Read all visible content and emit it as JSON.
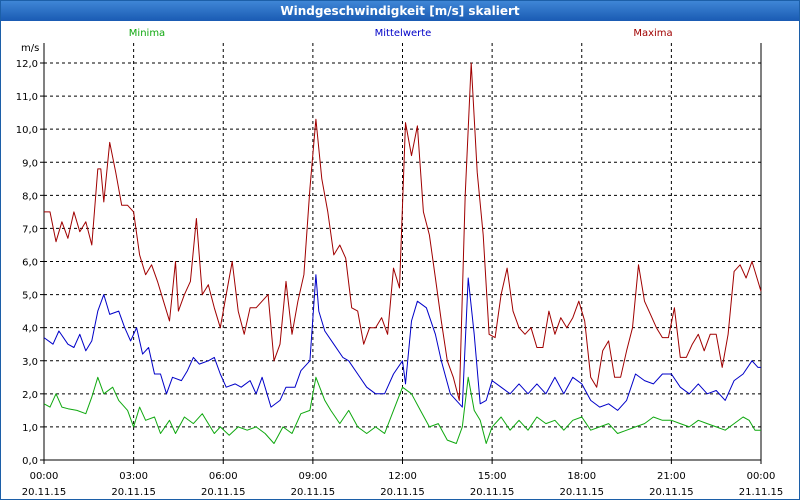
{
  "window": {
    "title": "Windgeschwindigkeit [m/s] skaliert"
  },
  "colors": {
    "minima": "#0fa80f",
    "mittel": "#0000c8",
    "maxima": "#a00000",
    "grid": "#000000"
  },
  "chart_data": {
    "type": "line",
    "title": "Windgeschwindigkeit [m/s] skaliert",
    "ylabel": "m/s",
    "ylim": [
      0,
      12
    ],
    "yticks": [
      "0,0",
      "1,0",
      "2,0",
      "3,0",
      "4,0",
      "5,0",
      "6,0",
      "7,0",
      "8,0",
      "9,0",
      "10,0",
      "11,0",
      "12,0"
    ],
    "xlim_hours": [
      0,
      24
    ],
    "xticks": [
      {
        "time": "00:00",
        "date": "20.11.15"
      },
      {
        "time": "03:00",
        "date": "20.11.15"
      },
      {
        "time": "06:00",
        "date": "20.11.15"
      },
      {
        "time": "09:00",
        "date": "20.11.15"
      },
      {
        "time": "12:00",
        "date": "20.11.15"
      },
      {
        "time": "15:00",
        "date": "20.11.15"
      },
      {
        "time": "18:00",
        "date": "20.11.15"
      },
      {
        "time": "21:00",
        "date": "20.11.15"
      },
      {
        "time": "00:00",
        "date": "21.11.15"
      }
    ],
    "series": [
      {
        "name": "Minima",
        "color": "#0fa80f",
        "points": [
          [
            0,
            1.7
          ],
          [
            0.2,
            1.6
          ],
          [
            0.4,
            2.0
          ],
          [
            0.6,
            1.6
          ],
          [
            0.8,
            1.55
          ],
          [
            1.1,
            1.5
          ],
          [
            1.4,
            1.4
          ],
          [
            1.6,
            1.9
          ],
          [
            1.8,
            2.5
          ],
          [
            2.0,
            2.0
          ],
          [
            2.3,
            2.2
          ],
          [
            2.5,
            1.8
          ],
          [
            2.8,
            1.5
          ],
          [
            3.0,
            1.0
          ],
          [
            3.2,
            1.6
          ],
          [
            3.4,
            1.2
          ],
          [
            3.7,
            1.3
          ],
          [
            3.9,
            0.8
          ],
          [
            4.2,
            1.2
          ],
          [
            4.4,
            0.8
          ],
          [
            4.7,
            1.3
          ],
          [
            5.0,
            1.1
          ],
          [
            5.3,
            1.4
          ],
          [
            5.5,
            1.1
          ],
          [
            5.7,
            0.8
          ],
          [
            5.9,
            1.0
          ],
          [
            6.2,
            0.75
          ],
          [
            6.5,
            1.0
          ],
          [
            6.8,
            0.9
          ],
          [
            7.1,
            1.0
          ],
          [
            7.4,
            0.8
          ],
          [
            7.7,
            0.5
          ],
          [
            8.0,
            1.0
          ],
          [
            8.3,
            0.8
          ],
          [
            8.6,
            1.4
          ],
          [
            8.9,
            1.5
          ],
          [
            9.1,
            2.5
          ],
          [
            9.4,
            1.8
          ],
          [
            9.6,
            1.5
          ],
          [
            9.9,
            1.1
          ],
          [
            10.2,
            1.5
          ],
          [
            10.5,
            1.0
          ],
          [
            10.8,
            0.8
          ],
          [
            11.1,
            1.0
          ],
          [
            11.4,
            0.8
          ],
          [
            11.7,
            1.5
          ],
          [
            12.0,
            2.2
          ],
          [
            12.3,
            2.0
          ],
          [
            12.6,
            1.5
          ],
          [
            12.9,
            1.0
          ],
          [
            13.2,
            1.1
          ],
          [
            13.5,
            0.6
          ],
          [
            13.8,
            0.5
          ],
          [
            14.0,
            1.0
          ],
          [
            14.2,
            2.5
          ],
          [
            14.4,
            1.5
          ],
          [
            14.6,
            1.2
          ],
          [
            14.8,
            0.5
          ],
          [
            15.0,
            1.0
          ],
          [
            15.3,
            1.3
          ],
          [
            15.6,
            0.9
          ],
          [
            15.9,
            1.2
          ],
          [
            16.2,
            0.9
          ],
          [
            16.5,
            1.3
          ],
          [
            16.8,
            1.1
          ],
          [
            17.1,
            1.2
          ],
          [
            17.4,
            0.9
          ],
          [
            17.7,
            1.2
          ],
          [
            18.0,
            1.3
          ],
          [
            18.3,
            0.9
          ],
          [
            18.6,
            1.0
          ],
          [
            18.9,
            1.1
          ],
          [
            19.2,
            0.8
          ],
          [
            19.5,
            0.9
          ],
          [
            19.8,
            1.0
          ],
          [
            20.1,
            1.1
          ],
          [
            20.4,
            1.3
          ],
          [
            20.7,
            1.2
          ],
          [
            21.0,
            1.2
          ],
          [
            21.3,
            1.1
          ],
          [
            21.6,
            1.0
          ],
          [
            21.9,
            1.2
          ],
          [
            22.2,
            1.1
          ],
          [
            22.5,
            1.0
          ],
          [
            22.8,
            0.9
          ],
          [
            23.1,
            1.1
          ],
          [
            23.4,
            1.3
          ],
          [
            23.6,
            1.2
          ],
          [
            23.8,
            0.9
          ],
          [
            24.0,
            0.9
          ]
        ]
      },
      {
        "name": "Mittelwerte",
        "color": "#0000c8",
        "points": [
          [
            0,
            3.7
          ],
          [
            0.3,
            3.5
          ],
          [
            0.5,
            3.9
          ],
          [
            0.8,
            3.5
          ],
          [
            1.0,
            3.4
          ],
          [
            1.2,
            3.8
          ],
          [
            1.4,
            3.3
          ],
          [
            1.6,
            3.6
          ],
          [
            1.8,
            4.5
          ],
          [
            2.0,
            5.0
          ],
          [
            2.2,
            4.4
          ],
          [
            2.5,
            4.5
          ],
          [
            2.7,
            4.0
          ],
          [
            2.9,
            3.6
          ],
          [
            3.1,
            4.0
          ],
          [
            3.3,
            3.2
          ],
          [
            3.5,
            3.4
          ],
          [
            3.7,
            2.6
          ],
          [
            3.9,
            2.6
          ],
          [
            4.1,
            2.0
          ],
          [
            4.3,
            2.5
          ],
          [
            4.6,
            2.4
          ],
          [
            4.8,
            2.7
          ],
          [
            5.0,
            3.1
          ],
          [
            5.2,
            2.9
          ],
          [
            5.5,
            3.0
          ],
          [
            5.7,
            3.1
          ],
          [
            5.9,
            2.6
          ],
          [
            6.1,
            2.2
          ],
          [
            6.4,
            2.3
          ],
          [
            6.6,
            2.2
          ],
          [
            6.9,
            2.4
          ],
          [
            7.1,
            2.0
          ],
          [
            7.3,
            2.5
          ],
          [
            7.6,
            1.6
          ],
          [
            7.9,
            1.8
          ],
          [
            8.1,
            2.2
          ],
          [
            8.4,
            2.2
          ],
          [
            8.6,
            2.7
          ],
          [
            8.9,
            3.0
          ],
          [
            9.1,
            5.6
          ],
          [
            9.2,
            4.5
          ],
          [
            9.4,
            3.9
          ],
          [
            9.7,
            3.5
          ],
          [
            10.0,
            3.1
          ],
          [
            10.2,
            3.0
          ],
          [
            10.5,
            2.6
          ],
          [
            10.8,
            2.2
          ],
          [
            11.1,
            2.0
          ],
          [
            11.4,
            2.0
          ],
          [
            11.7,
            2.6
          ],
          [
            12.0,
            3.0
          ],
          [
            12.1,
            2.3
          ],
          [
            12.3,
            4.2
          ],
          [
            12.5,
            4.8
          ],
          [
            12.8,
            4.6
          ],
          [
            13.1,
            3.8
          ],
          [
            13.3,
            3.0
          ],
          [
            13.6,
            2.0
          ],
          [
            13.8,
            1.8
          ],
          [
            14.0,
            1.6
          ],
          [
            14.2,
            5.5
          ],
          [
            14.4,
            3.8
          ],
          [
            14.6,
            1.7
          ],
          [
            14.8,
            1.8
          ],
          [
            15.0,
            2.4
          ],
          [
            15.3,
            2.2
          ],
          [
            15.6,
            2.0
          ],
          [
            15.9,
            2.3
          ],
          [
            16.2,
            2.0
          ],
          [
            16.5,
            2.3
          ],
          [
            16.8,
            2.0
          ],
          [
            17.1,
            2.5
          ],
          [
            17.4,
            2.0
          ],
          [
            17.7,
            2.5
          ],
          [
            18.0,
            2.3
          ],
          [
            18.3,
            1.8
          ],
          [
            18.6,
            1.6
          ],
          [
            18.9,
            1.7
          ],
          [
            19.2,
            1.5
          ],
          [
            19.5,
            1.8
          ],
          [
            19.8,
            2.6
          ],
          [
            20.1,
            2.4
          ],
          [
            20.4,
            2.3
          ],
          [
            20.7,
            2.6
          ],
          [
            21.0,
            2.6
          ],
          [
            21.3,
            2.2
          ],
          [
            21.6,
            2.0
          ],
          [
            21.9,
            2.3
          ],
          [
            22.2,
            2.0
          ],
          [
            22.5,
            2.1
          ],
          [
            22.8,
            1.8
          ],
          [
            23.1,
            2.4
          ],
          [
            23.4,
            2.6
          ],
          [
            23.7,
            3.0
          ],
          [
            23.9,
            2.8
          ],
          [
            24.0,
            2.8
          ]
        ]
      },
      {
        "name": "Maxima",
        "color": "#a00000",
        "points": [
          [
            0,
            7.5
          ],
          [
            0.2,
            7.5
          ],
          [
            0.4,
            6.6
          ],
          [
            0.6,
            7.2
          ],
          [
            0.8,
            6.7
          ],
          [
            1.0,
            7.5
          ],
          [
            1.2,
            6.9
          ],
          [
            1.4,
            7.2
          ],
          [
            1.6,
            6.5
          ],
          [
            1.8,
            8.8
          ],
          [
            1.9,
            8.8
          ],
          [
            2.0,
            7.8
          ],
          [
            2.2,
            9.6
          ],
          [
            2.4,
            8.7
          ],
          [
            2.6,
            7.7
          ],
          [
            2.8,
            7.7
          ],
          [
            3.0,
            7.5
          ],
          [
            3.2,
            6.2
          ],
          [
            3.4,
            5.6
          ],
          [
            3.6,
            5.9
          ],
          [
            3.8,
            5.4
          ],
          [
            4.0,
            4.8
          ],
          [
            4.2,
            4.2
          ],
          [
            4.4,
            6.0
          ],
          [
            4.5,
            4.5
          ],
          [
            4.7,
            5.0
          ],
          [
            4.9,
            5.4
          ],
          [
            5.1,
            7.3
          ],
          [
            5.3,
            5.0
          ],
          [
            5.5,
            5.3
          ],
          [
            5.7,
            4.6
          ],
          [
            5.9,
            4.0
          ],
          [
            6.1,
            5.0
          ],
          [
            6.3,
            6.0
          ],
          [
            6.5,
            4.5
          ],
          [
            6.7,
            3.8
          ],
          [
            6.9,
            4.6
          ],
          [
            7.1,
            4.6
          ],
          [
            7.3,
            4.8
          ],
          [
            7.5,
            5.0
          ],
          [
            7.7,
            3.0
          ],
          [
            7.9,
            3.5
          ],
          [
            8.1,
            5.4
          ],
          [
            8.3,
            3.8
          ],
          [
            8.5,
            4.8
          ],
          [
            8.7,
            5.6
          ],
          [
            8.9,
            8.2
          ],
          [
            9.1,
            10.3
          ],
          [
            9.3,
            8.5
          ],
          [
            9.5,
            7.5
          ],
          [
            9.7,
            6.2
          ],
          [
            9.9,
            6.5
          ],
          [
            10.1,
            6.1
          ],
          [
            10.3,
            4.6
          ],
          [
            10.5,
            4.5
          ],
          [
            10.7,
            3.5
          ],
          [
            10.9,
            4.0
          ],
          [
            11.1,
            4.0
          ],
          [
            11.3,
            4.3
          ],
          [
            11.5,
            3.8
          ],
          [
            11.7,
            5.8
          ],
          [
            11.9,
            5.2
          ],
          [
            12.1,
            10.2
          ],
          [
            12.3,
            9.2
          ],
          [
            12.5,
            10.1
          ],
          [
            12.7,
            7.5
          ],
          [
            12.9,
            6.8
          ],
          [
            13.1,
            5.5
          ],
          [
            13.3,
            4.2
          ],
          [
            13.5,
            3.0
          ],
          [
            13.7,
            2.5
          ],
          [
            13.9,
            1.8
          ],
          [
            14.1,
            8.0
          ],
          [
            14.3,
            12.0
          ],
          [
            14.5,
            8.7
          ],
          [
            14.7,
            6.8
          ],
          [
            14.9,
            3.8
          ],
          [
            15.1,
            3.7
          ],
          [
            15.3,
            5.0
          ],
          [
            15.5,
            5.8
          ],
          [
            15.7,
            4.5
          ],
          [
            15.9,
            4.0
          ],
          [
            16.1,
            3.8
          ],
          [
            16.3,
            4.0
          ],
          [
            16.5,
            3.4
          ],
          [
            16.7,
            3.4
          ],
          [
            16.9,
            4.5
          ],
          [
            17.1,
            3.8
          ],
          [
            17.3,
            4.3
          ],
          [
            17.5,
            4.0
          ],
          [
            17.7,
            4.3
          ],
          [
            17.9,
            4.8
          ],
          [
            18.1,
            4.2
          ],
          [
            18.3,
            2.5
          ],
          [
            18.5,
            2.2
          ],
          [
            18.7,
            3.3
          ],
          [
            18.9,
            3.6
          ],
          [
            19.1,
            2.5
          ],
          [
            19.3,
            2.5
          ],
          [
            19.5,
            3.3
          ],
          [
            19.7,
            4.0
          ],
          [
            19.9,
            5.9
          ],
          [
            20.1,
            4.8
          ],
          [
            20.3,
            4.4
          ],
          [
            20.5,
            4.0
          ],
          [
            20.7,
            3.7
          ],
          [
            20.9,
            3.7
          ],
          [
            21.1,
            4.6
          ],
          [
            21.3,
            3.1
          ],
          [
            21.5,
            3.1
          ],
          [
            21.7,
            3.5
          ],
          [
            21.9,
            3.8
          ],
          [
            22.1,
            3.3
          ],
          [
            22.3,
            3.8
          ],
          [
            22.5,
            3.8
          ],
          [
            22.7,
            2.8
          ],
          [
            22.9,
            3.8
          ],
          [
            23.1,
            5.7
          ],
          [
            23.3,
            5.9
          ],
          [
            23.5,
            5.5
          ],
          [
            23.7,
            6.0
          ],
          [
            23.9,
            5.4
          ],
          [
            24.0,
            5.1
          ]
        ]
      }
    ]
  }
}
